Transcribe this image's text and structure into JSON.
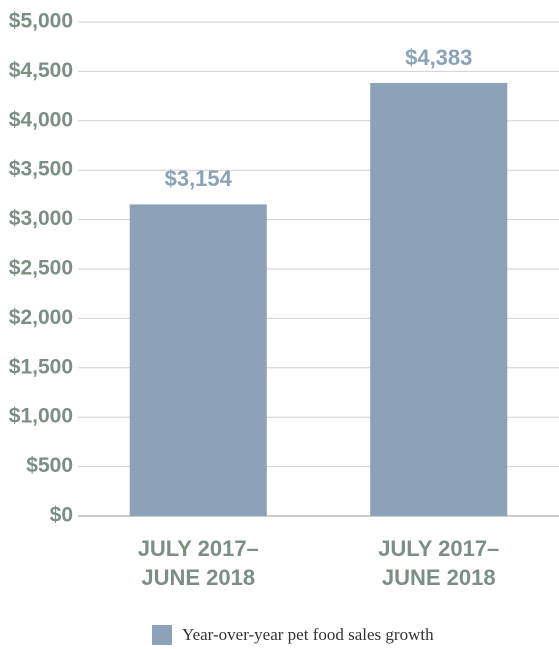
{
  "chart_data": {
    "type": "bar",
    "categories": [
      "JULY 2017–\nJUNE 2018",
      "JULY 2017–\nJUNE 2018"
    ],
    "series": [
      {
        "name": "Year-over-year pet food sales growth",
        "color": "#8ca2b8",
        "values": [
          3154,
          4383
        ],
        "value_labels": [
          "$3,154",
          "$4,383"
        ]
      }
    ],
    "ylim": [
      0,
      5000
    ],
    "yticks": [
      {
        "value": 0,
        "label": "$0"
      },
      {
        "value": 500,
        "label": "$500"
      },
      {
        "value": 1000,
        "label": "$1,000"
      },
      {
        "value": 1500,
        "label": "$1,500"
      },
      {
        "value": 2000,
        "label": "$2,000"
      },
      {
        "value": 2500,
        "label": "$2,500"
      },
      {
        "value": 3000,
        "label": "$3,000"
      },
      {
        "value": 3500,
        "label": "$3,500"
      },
      {
        "value": 4000,
        "label": "$4,000"
      },
      {
        "value": 4500,
        "label": "$4,500"
      },
      {
        "value": 5000,
        "label": "$5,000"
      }
    ],
    "grid": true
  }
}
